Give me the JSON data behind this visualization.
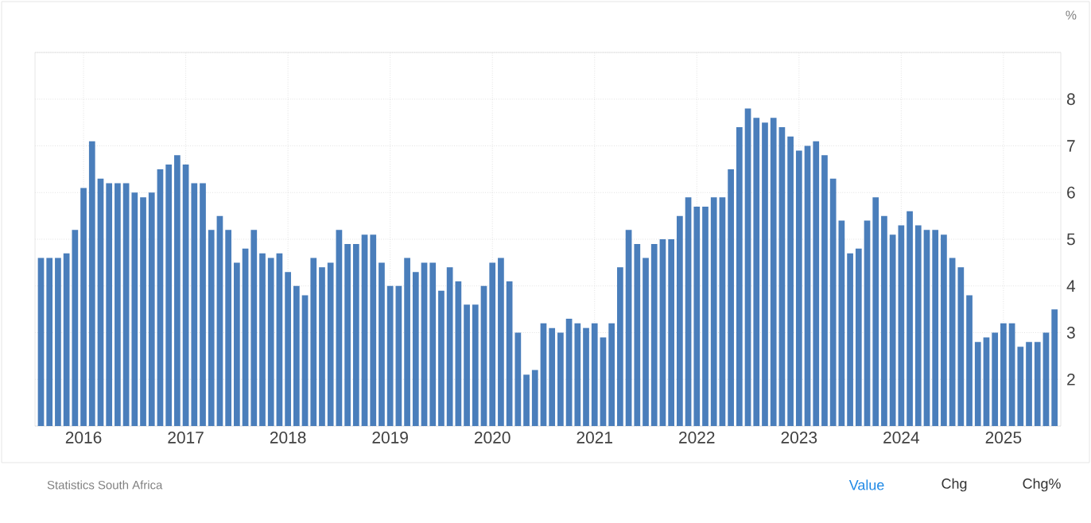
{
  "chart_data": {
    "type": "bar",
    "ylabel": "%",
    "x": [
      "2015-08",
      "2015-09",
      "2015-10",
      "2015-11",
      "2015-12",
      "2016-01",
      "2016-02",
      "2016-03",
      "2016-04",
      "2016-05",
      "2016-06",
      "2016-07",
      "2016-08",
      "2016-09",
      "2016-10",
      "2016-11",
      "2016-12",
      "2017-01",
      "2017-02",
      "2017-03",
      "2017-04",
      "2017-05",
      "2017-06",
      "2017-07",
      "2017-08",
      "2017-09",
      "2017-10",
      "2017-11",
      "2017-12",
      "2018-01",
      "2018-02",
      "2018-03",
      "2018-04",
      "2018-05",
      "2018-06",
      "2018-07",
      "2018-08",
      "2018-09",
      "2018-10",
      "2018-11",
      "2018-12",
      "2019-01",
      "2019-02",
      "2019-03",
      "2019-04",
      "2019-05",
      "2019-06",
      "2019-07",
      "2019-08",
      "2019-09",
      "2019-10",
      "2019-11",
      "2019-12",
      "2020-01",
      "2020-02",
      "2020-03",
      "2020-04",
      "2020-05",
      "2020-06",
      "2020-07",
      "2020-08",
      "2020-09",
      "2020-10",
      "2020-11",
      "2020-12",
      "2021-01",
      "2021-02",
      "2021-03",
      "2021-04",
      "2021-05",
      "2021-06",
      "2021-07",
      "2021-08",
      "2021-09",
      "2021-10",
      "2021-11",
      "2021-12",
      "2022-01",
      "2022-02",
      "2022-03",
      "2022-04",
      "2022-05",
      "2022-06",
      "2022-07",
      "2022-08",
      "2022-09",
      "2022-10",
      "2022-11",
      "2022-12",
      "2023-01",
      "2023-02",
      "2023-03",
      "2023-04",
      "2023-05",
      "2023-06",
      "2023-07",
      "2023-08",
      "2023-09",
      "2023-10",
      "2023-11",
      "2023-12",
      "2024-01",
      "2024-02",
      "2024-03",
      "2024-04",
      "2024-05",
      "2024-06",
      "2024-07",
      "2024-08",
      "2024-09",
      "2024-10",
      "2024-11",
      "2024-12",
      "2025-01",
      "2025-02",
      "2025-03",
      "2025-04",
      "2025-05",
      "2025-06",
      "2025-07"
    ],
    "values": [
      4.6,
      4.6,
      4.6,
      4.7,
      5.2,
      6.1,
      7.1,
      6.3,
      6.2,
      6.2,
      6.2,
      6.0,
      5.9,
      6.0,
      6.5,
      6.6,
      6.8,
      6.6,
      6.2,
      6.2,
      5.2,
      5.5,
      5.2,
      4.5,
      4.8,
      5.2,
      4.7,
      4.6,
      4.7,
      4.3,
      4.0,
      3.8,
      4.6,
      4.4,
      4.5,
      5.2,
      4.9,
      4.9,
      5.1,
      5.1,
      4.5,
      4.0,
      4.0,
      4.6,
      4.3,
      4.5,
      4.5,
      3.9,
      4.4,
      4.1,
      3.6,
      3.6,
      4.0,
      4.5,
      4.6,
      4.1,
      3.0,
      2.1,
      2.2,
      3.2,
      3.1,
      3.0,
      3.3,
      3.2,
      3.1,
      3.2,
      2.9,
      3.2,
      4.4,
      5.2,
      4.9,
      4.6,
      4.9,
      5.0,
      5.0,
      5.5,
      5.9,
      5.7,
      5.7,
      5.9,
      5.9,
      6.5,
      7.4,
      7.8,
      7.6,
      7.5,
      7.6,
      7.4,
      7.2,
      6.9,
      7.0,
      7.1,
      6.8,
      6.3,
      5.4,
      4.7,
      4.8,
      5.4,
      5.9,
      5.5,
      5.1,
      5.3,
      5.6,
      5.3,
      5.2,
      5.2,
      5.1,
      4.6,
      4.4,
      3.8,
      2.8,
      2.9,
      3.0,
      3.2,
      3.2,
      2.7,
      2.8,
      2.8,
      3.0,
      3.5
    ],
    "color": "#4a7ebb",
    "xlim": [
      "2015-07-10",
      "2025-07-23"
    ],
    "xticks": [
      {
        "value": "2016-01",
        "label": "2016"
      },
      {
        "value": "2017-01",
        "label": "2017"
      },
      {
        "value": "2018-01",
        "label": "2018"
      },
      {
        "value": "2019-01",
        "label": "2019"
      },
      {
        "value": "2020-01",
        "label": "2020"
      },
      {
        "value": "2021-01",
        "label": "2021"
      },
      {
        "value": "2022-01",
        "label": "2022"
      },
      {
        "value": "2023-01",
        "label": "2023"
      },
      {
        "value": "2024-01",
        "label": "2024"
      },
      {
        "value": "2025-01",
        "label": "2025"
      }
    ],
    "ylim": [
      1,
      9
    ],
    "yticks": [
      {
        "value": 1,
        "label": null
      },
      2,
      3,
      4,
      5,
      6,
      7,
      8,
      {
        "value": 9,
        "label": null
      }
    ],
    "grid": true,
    "annotations": [
      "Statistics South Africa",
      "Value",
      "Chg",
      "Chg%"
    ]
  }
}
